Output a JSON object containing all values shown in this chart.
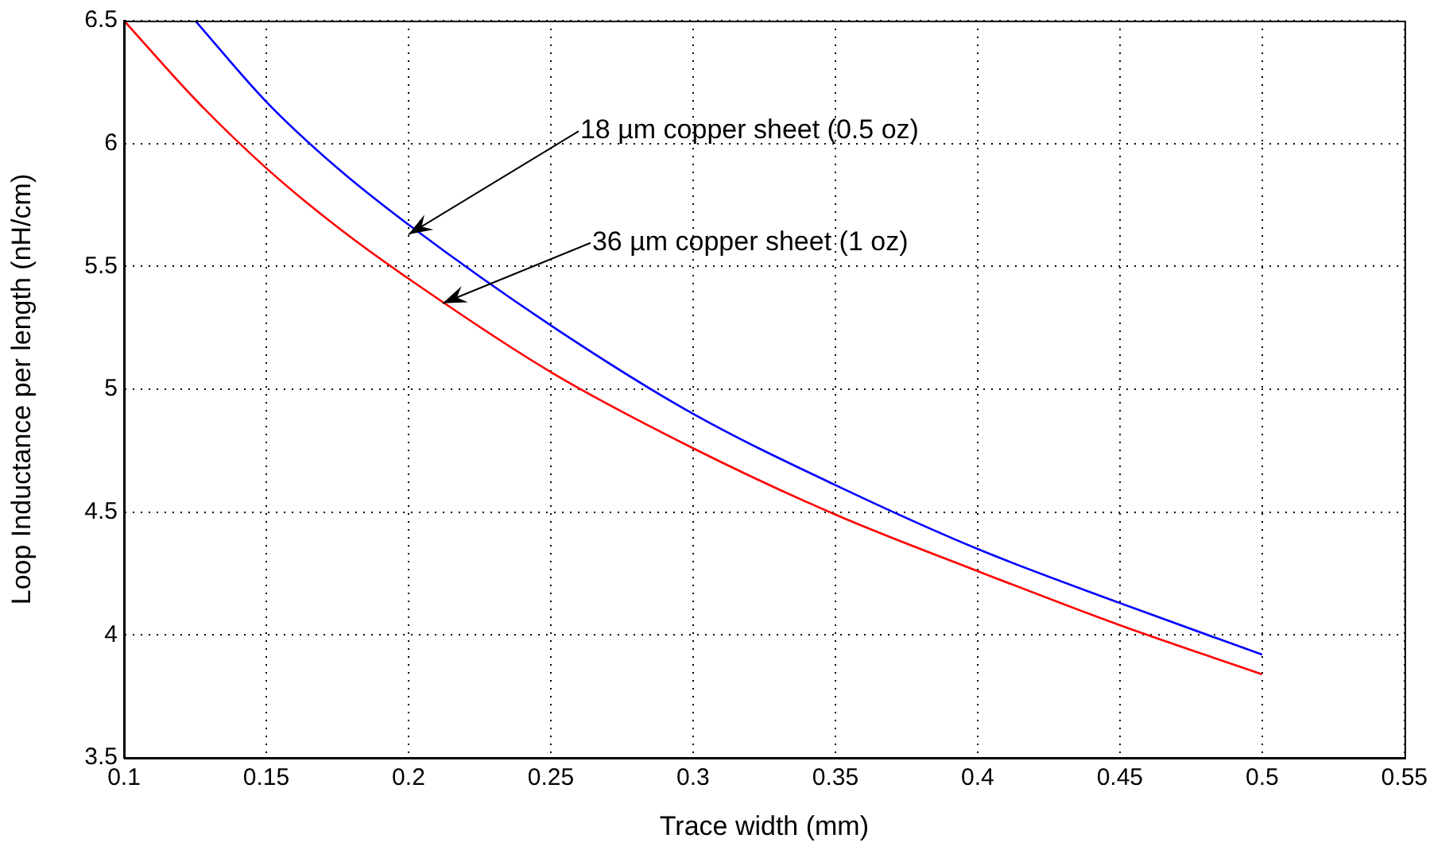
{
  "chart_data": {
    "type": "line",
    "xlabel": "Trace width (mm)",
    "ylabel": "Loop Inductance per length (nH/cm)",
    "xlim": [
      0.1,
      0.55
    ],
    "xticks": [
      0.1,
      0.15,
      0.2,
      0.25,
      0.3,
      0.35,
      0.4,
      0.45,
      0.5,
      0.55
    ],
    "ylim": [
      3.5,
      6.5
    ],
    "yticks": [
      3.5,
      4,
      4.5,
      5,
      5.5,
      6,
      6.5
    ],
    "grid": true,
    "legend": false,
    "marker": "none",
    "line_style": "solid",
    "series": [
      {
        "color": "#0000ff",
        "x": [
          0.125,
          0.15,
          0.175,
          0.2,
          0.25,
          0.3,
          0.35,
          0.4,
          0.45,
          0.5
        ],
        "values": [
          6.5,
          6.17,
          5.9,
          5.67,
          5.26,
          4.9,
          4.61,
          4.35,
          4.13,
          3.92
        ]
      },
      {
        "color": "#ff0000",
        "x": [
          0.1,
          0.125,
          0.15,
          0.175,
          0.2,
          0.25,
          0.3,
          0.35,
          0.4,
          0.45,
          0.5
        ],
        "values": [
          6.5,
          6.18,
          5.9,
          5.66,
          5.45,
          5.07,
          4.76,
          4.49,
          4.26,
          4.04,
          3.84
        ]
      }
    ],
    "annotations": [
      {
        "text": "18 µm copper sheet (0.5 oz)",
        "x": 0.2,
        "y": 5.63
      },
      {
        "text": "36 µm copper sheet (1 oz)",
        "x": 0.212,
        "y": 5.35
      }
    ]
  }
}
